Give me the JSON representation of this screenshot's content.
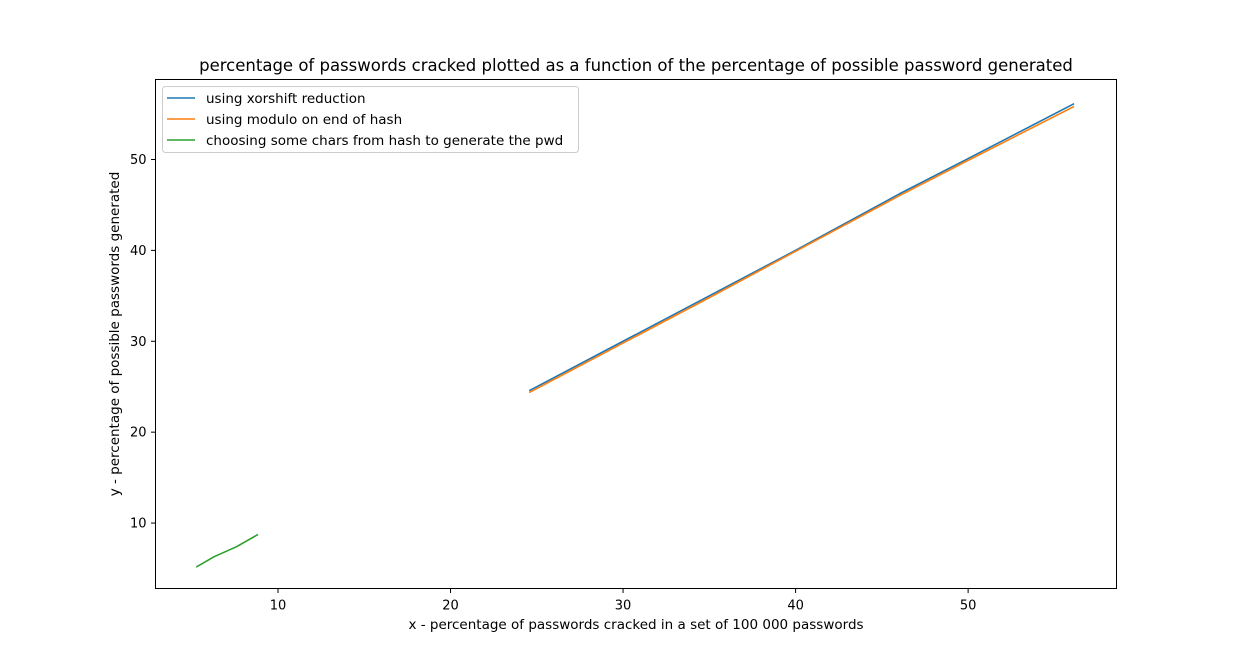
{
  "chart_data": {
    "type": "line",
    "title": "percentage of passwords cracked plotted as a function of the percentage of possible password generated",
    "xlabel": "x - percentage of passwords cracked in a set of 100 000 passwords",
    "ylabel": "y - percentage of possible passwords generated",
    "xlim": [
      2.9,
      58.6
    ],
    "ylim": [
      2.8,
      58.8
    ],
    "xticks": [
      10,
      20,
      30,
      40,
      50
    ],
    "yticks": [
      10,
      20,
      30,
      40,
      50
    ],
    "grid": false,
    "legend_position": "upper-left",
    "series": [
      {
        "name": "using xorshift reduction",
        "color": "#1f77b4",
        "x": [
          24.6,
          30,
          35,
          40,
          46,
          50,
          56.1
        ],
        "y": [
          24.6,
          30.0,
          35.0,
          40.0,
          46.2,
          50.1,
          56.1
        ]
      },
      {
        "name": "using modulo on end of hash",
        "color": "#ff7f0e",
        "x": [
          24.6,
          30,
          35,
          40,
          46,
          50,
          56.1
        ],
        "y": [
          24.4,
          29.8,
          34.8,
          39.9,
          46.0,
          49.9,
          55.8
        ]
      },
      {
        "name": "choosing some chars from hash to generate the pwd",
        "color": "#2ca02c",
        "x": [
          5.3,
          6.3,
          7.6,
          8.8
        ],
        "y": [
          5.2,
          6.3,
          7.4,
          8.7
        ]
      }
    ]
  }
}
